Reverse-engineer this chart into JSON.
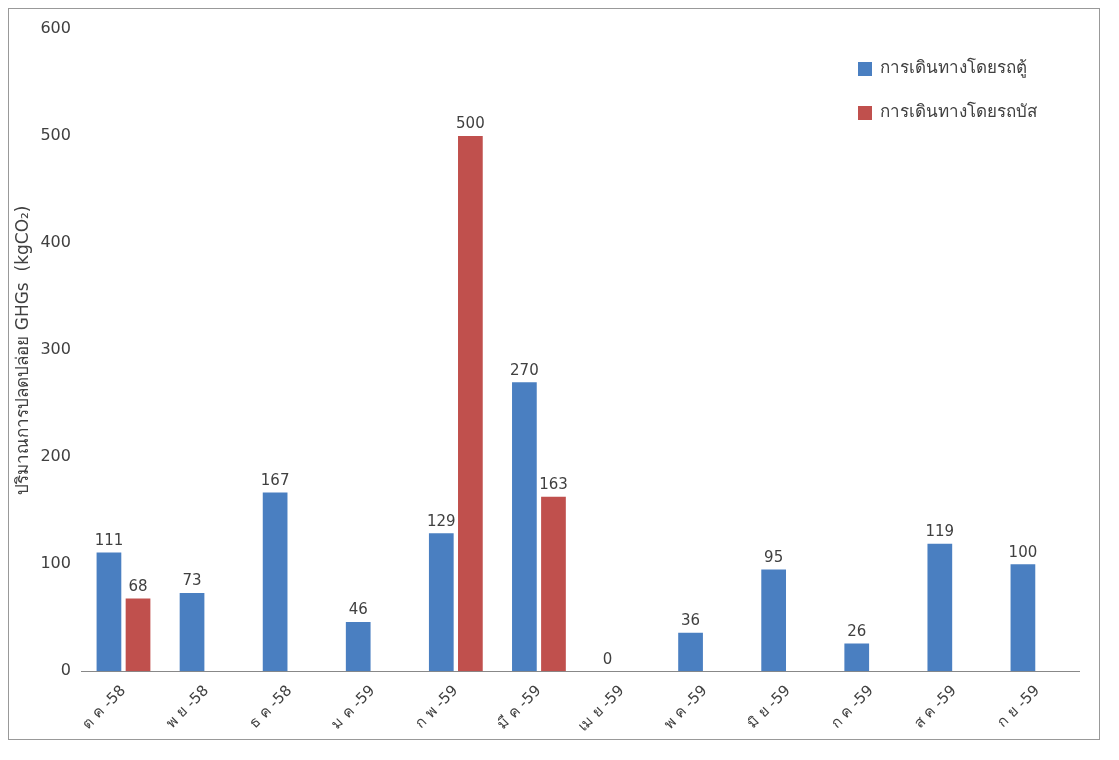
{
  "chart_data": {
    "type": "bar",
    "ylabel": "ปริมาณการปลดปล่อย GHGs  (kgCO₂)",
    "categories": [
      "ต ค -58",
      "พ ย -58",
      "ธ ค -58",
      "ม ค -59",
      "ก พ -59",
      "มี ค -59",
      "เม ย -59",
      "พ ค -59",
      "มิ ย -59",
      "ก ค -59",
      "ส ค -59",
      "ก ย -59"
    ],
    "series": [
      {
        "name": "การเดินทางโดยรถตู้",
        "color": "#4a7fc1",
        "values": [
          111,
          73,
          167,
          46,
          129,
          270,
          0,
          36,
          95,
          26,
          119,
          100
        ]
      },
      {
        "name": "การเดินทางโดยรถบัส",
        "color": "#c0504d",
        "values": [
          68,
          null,
          null,
          null,
          500,
          163,
          null,
          null,
          null,
          null,
          null,
          null
        ]
      }
    ],
    "ylim": [
      0,
      600
    ],
    "yticks": [
      0,
      100,
      200,
      300,
      400,
      500,
      600
    ],
    "grid": false,
    "legend": "top right",
    "data_labels": true
  }
}
